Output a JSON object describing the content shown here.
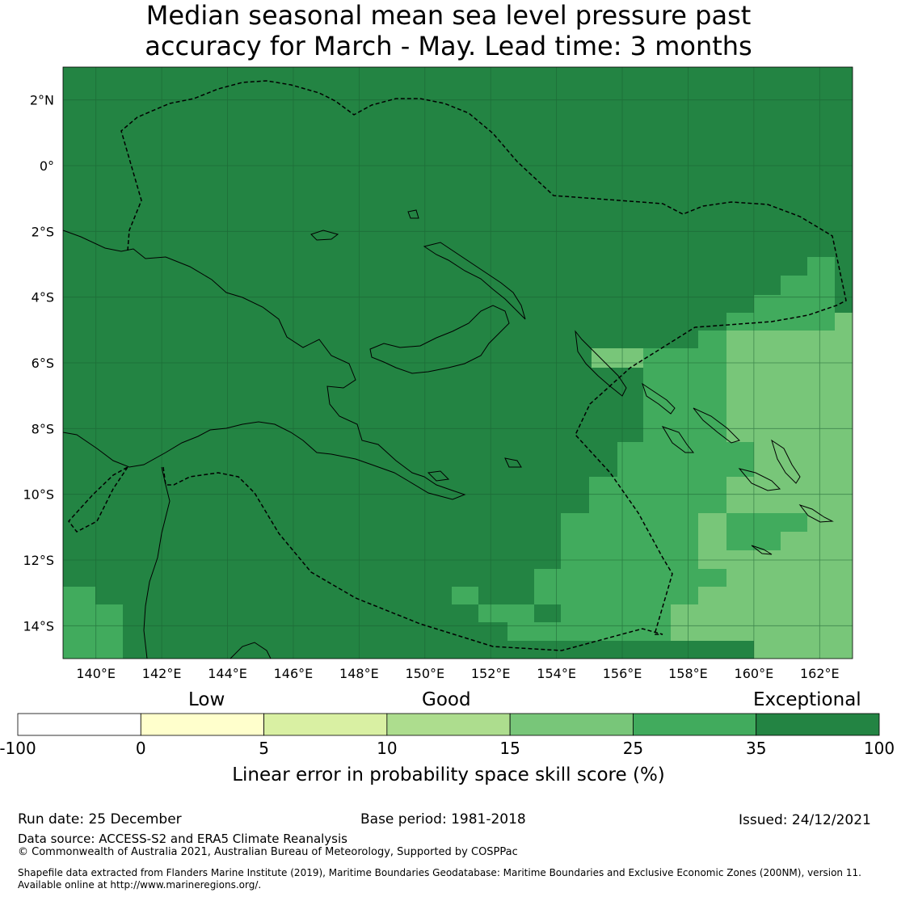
{
  "title": {
    "line1": "Median seasonal mean sea level pressure past",
    "line2": "accuracy for March - May. Lead time: 3 months"
  },
  "map": {
    "lon_labels": [
      "140°E",
      "142°E",
      "144°E",
      "146°E",
      "148°E",
      "150°E",
      "152°E",
      "154°E",
      "156°E",
      "158°E",
      "160°E",
      "162°E"
    ],
    "lat_labels": [
      "2°N",
      "0°",
      "2°S",
      "4°S",
      "6°S",
      "8°S",
      "10°S",
      "12°S",
      "14°S"
    ],
    "lon_range": [
      139,
      163
    ],
    "lat_range": [
      -15,
      3
    ],
    "colors": {
      "exceptional": "#238443",
      "25-35": "#41ab5d",
      "15-25": "#78c679",
      "10-15": "#addd8e",
      "5-10": "#d9f0a3",
      "0-5": "#ffffcc",
      "below0": "#ffffff"
    }
  },
  "colorbar": {
    "categories": [
      "Low",
      "Good",
      "Exceptional"
    ],
    "ticks": [
      "-100",
      "0",
      "5",
      "10",
      "15",
      "25",
      "35",
      "100"
    ],
    "colors": [
      "#ffffff",
      "#ffffcc",
      "#d9f0a3",
      "#addd8e",
      "#78c679",
      "#41ab5d",
      "#238443"
    ],
    "label": "Linear error in probability space skill score (%)"
  },
  "footer": {
    "run_date": "Run date: 25 December",
    "base_period": "Base period: 1981-2018",
    "issued": "Issued: 24/12/2021",
    "data_source": "Data source: ACCESS-S2 and ERA5 Climate Reanalysis",
    "copyright": "© Commonwealth of Australia 2021, Australian Bureau of Meteorology, Supported by COSPPac",
    "shapefile_line1": "Shapefile data extracted from Flanders Marine Institute (2019), Maritime Boundaries Geodatabase: Maritime Boundaries and Exclusive Economic Zones (200NM), version 11.",
    "shapefile_line2": "Available online at http://www.marineregions.org/."
  }
}
